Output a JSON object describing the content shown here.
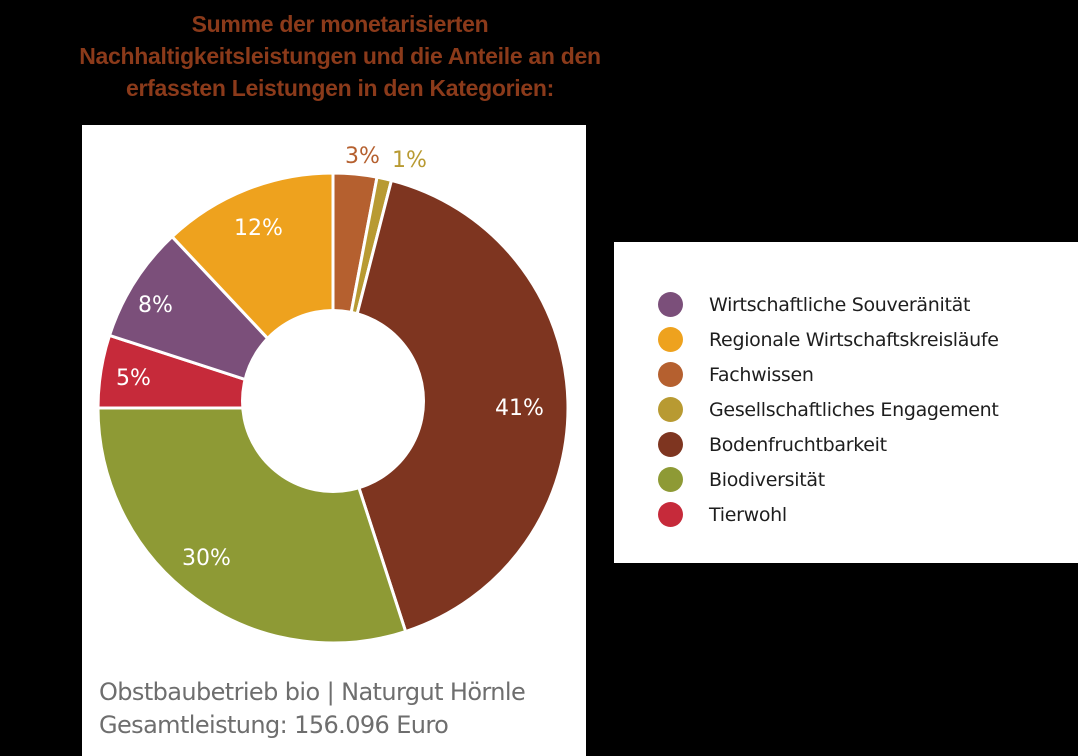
{
  "title": {
    "line1": "Summe der monetarisierten",
    "line2": "Nachhaltigkeitsleistungen und die Anteile an den",
    "line3": "erfassten Leistungen in den Kategorien:"
  },
  "caption": {
    "line1": "Obstbaubetrieb bio | Naturgut Hörnle",
    "line2": "Gesamtleistung: 156.096 Euro"
  },
  "colors": {
    "title": "#8b3a1a",
    "Wirtschaftliche Souveränität": "#7b4f7a",
    "Regionale Wirtschaftskreisläufe": "#eea21e",
    "Fachwissen": "#b5602f",
    "Gesellschaftliches Engagement": "#b89a32",
    "Bodenfruchtbarkeit": "#7e3520",
    "Biodiversität": "#8e9a35",
    "Tierwohl": "#c62a3a"
  },
  "legend": {
    "items": [
      {
        "label": "Wirtschaftliche Souveränität",
        "color": "#7b4f7a"
      },
      {
        "label": "Regionale Wirtschaftskreisläufe",
        "color": "#eea21e"
      },
      {
        "label": "Fachwissen",
        "color": "#b5602f"
      },
      {
        "label": "Gesellschaftliches Engagement",
        "color": "#b89a32"
      },
      {
        "label": "Bodenfruchtbarkeit",
        "color": "#7e3520"
      },
      {
        "label": "Biodiversität",
        "color": "#8e9a35"
      },
      {
        "label": "Tierwohl",
        "color": "#c62a3a"
      }
    ]
  },
  "labels": {
    "fachwissen": "3%",
    "engagement": "1%",
    "boden": "41%",
    "bio": "30%",
    "tierwohl": "5%",
    "souveraenitaet": "8%",
    "regional": "12%"
  },
  "chart_data": {
    "type": "pie",
    "variant": "donut",
    "title": "Summe der monetarisierten Nachhaltigkeitsleistungen und die Anteile an den erfassten Leistungen in den Kategorien:",
    "subtitle": "Obstbaubetrieb bio | Naturgut Hörnle — Gesamtleistung: 156.096 Euro",
    "categories": [
      "Fachwissen",
      "Gesellschaftliches Engagement",
      "Bodenfruchtbarkeit",
      "Biodiversität",
      "Tierwohl",
      "Wirtschaftliche Souveränität",
      "Regionale Wirtschaftskreisläufe"
    ],
    "values": [
      3,
      1,
      41,
      30,
      5,
      8,
      12
    ],
    "unit": "%",
    "total": "156.096 Euro",
    "legend_position": "right"
  }
}
